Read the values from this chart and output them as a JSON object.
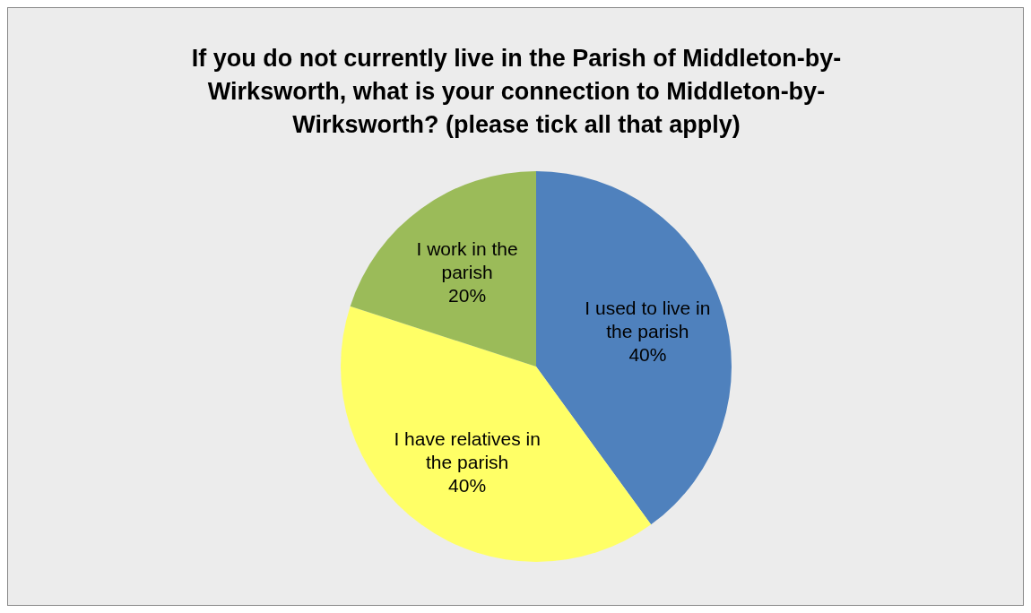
{
  "chart_data": {
    "type": "pie",
    "title": "If you do not currently live in the Parish of Middleton-by-Wirksworth, what is your connection to Middleton-by-Wirksworth? (please tick all that apply)",
    "categories": [
      "I used to live in the parish",
      "I have relatives in the parish",
      "I work in the parish"
    ],
    "values": [
      40,
      40,
      20
    ],
    "colors": [
      "#4f81bd",
      "#ffff66",
      "#9bbb59"
    ],
    "value_labels": [
      "40%",
      "40%",
      "20%"
    ],
    "legend": false
  }
}
